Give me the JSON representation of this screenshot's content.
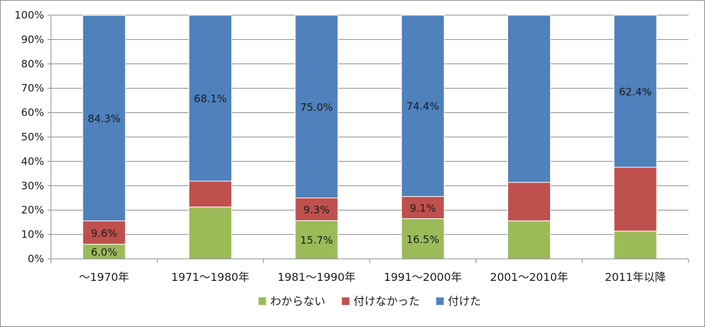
{
  "chart_data": {
    "type": "bar",
    "stacked": true,
    "normalized": true,
    "categories": [
      "～1970年",
      "1971～1980年",
      "1981～1990年",
      "1991～2000年",
      "2001～2010年",
      "2011年以降"
    ],
    "series": [
      {
        "name": "わからない",
        "color": "#9bbb59",
        "values": [
          6.0,
          21.3,
          15.7,
          16.5,
          15.6,
          11.4
        ],
        "labels": [
          "6.0%",
          "",
          "15.7%",
          "16.5%",
          "",
          ""
        ]
      },
      {
        "name": "付けなかった",
        "color": "#c0504d",
        "values": [
          9.6,
          10.6,
          9.3,
          9.1,
          15.8,
          26.2
        ],
        "labels": [
          "9.6%",
          "",
          "9.3%",
          "9.1%",
          "",
          ""
        ]
      },
      {
        "name": "付けた",
        "color": "#4f81bd",
        "values": [
          84.3,
          68.1,
          75.0,
          74.4,
          68.6,
          62.4
        ],
        "labels": [
          "84.3%",
          "68.1%",
          "75.0%",
          "74.4%",
          "",
          "62.4%"
        ]
      }
    ],
    "yticks": [
      "0%",
      "10%",
      "20%",
      "30%",
      "40%",
      "50%",
      "60%",
      "70%",
      "80%",
      "90%",
      "100%"
    ],
    "ylim": [
      0,
      100
    ],
    "grid": true,
    "legend": "bottom",
    "title": "",
    "xlabel": "",
    "ylabel": ""
  }
}
